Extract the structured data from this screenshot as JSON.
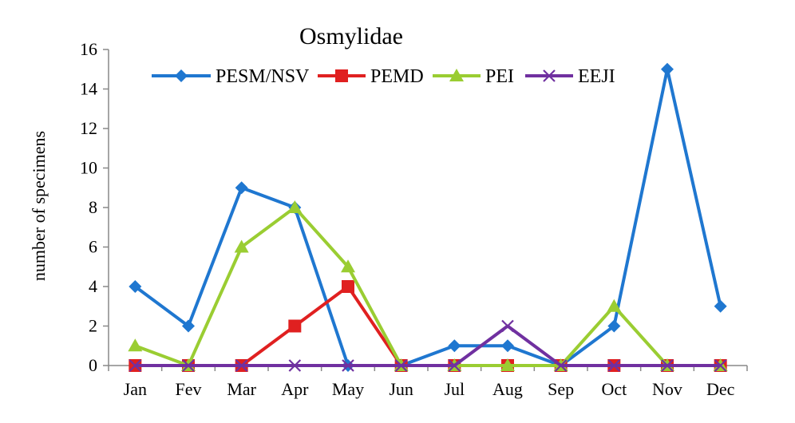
{
  "chart_data": {
    "type": "line",
    "title": "Osmylidae",
    "xlabel": "",
    "ylabel": "number of specimens",
    "categories": [
      "Jan",
      "Fev",
      "Mar",
      "Apr",
      "May",
      "Jun",
      "Jul",
      "Aug",
      "Sep",
      "Oct",
      "Nov",
      "Dec"
    ],
    "ylim": [
      0,
      16
    ],
    "yticks": [
      0,
      2,
      4,
      6,
      8,
      10,
      12,
      14,
      16
    ],
    "legend_position": "top",
    "grid": false,
    "series": [
      {
        "name": "PESM/NSV",
        "color": "#1f77d0",
        "marker": "diamond",
        "values": [
          4,
          2,
          9,
          8,
          0,
          0,
          1,
          1,
          0,
          2,
          15,
          3
        ]
      },
      {
        "name": "PEMD",
        "color": "#e02020",
        "marker": "square",
        "values": [
          0,
          0,
          0,
          2,
          4,
          0,
          0,
          0,
          0,
          0,
          0,
          0
        ]
      },
      {
        "name": "PEI",
        "color": "#9acd32",
        "marker": "triangle",
        "values": [
          1,
          0,
          6,
          8,
          5,
          0,
          0,
          0,
          0,
          3,
          0,
          0
        ]
      },
      {
        "name": "EEJI",
        "color": "#7030a0",
        "marker": "x",
        "values": [
          0,
          0,
          0,
          0,
          0,
          0,
          0,
          2,
          0,
          0,
          0,
          0
        ]
      }
    ]
  }
}
